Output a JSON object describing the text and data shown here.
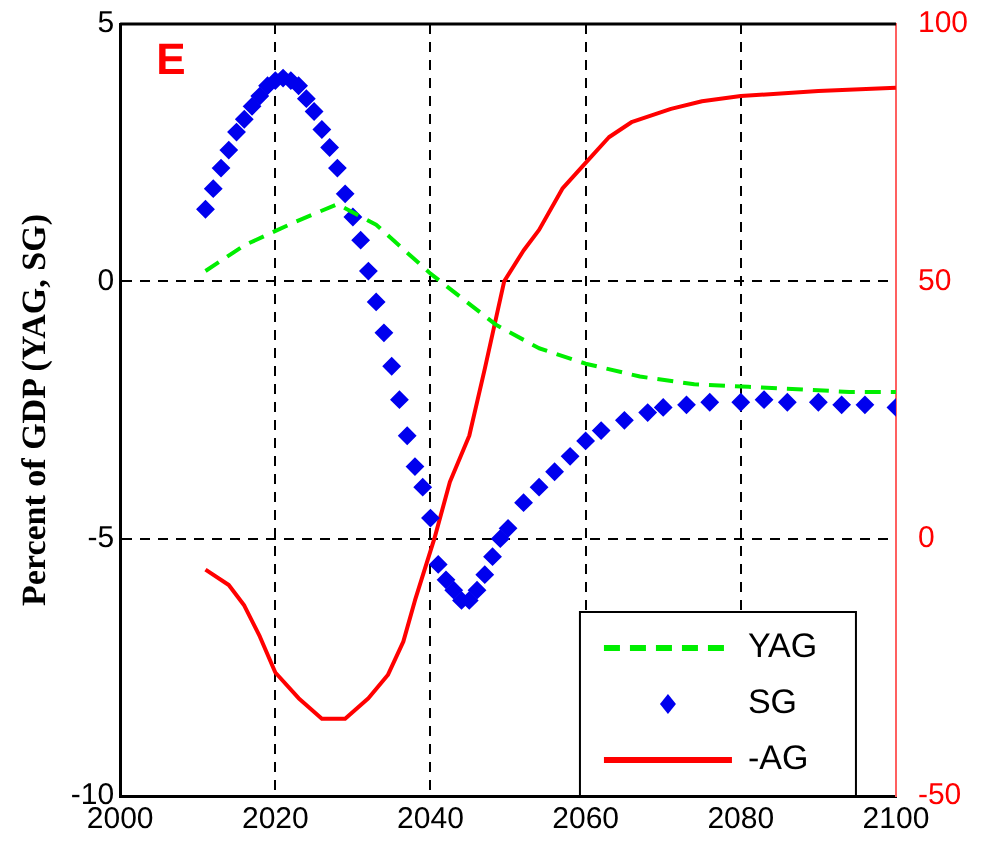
{
  "chart_data": {
    "type": "line",
    "ylabel": "Percent of GDP (YAG, SG)",
    "annotations": [
      "E"
    ],
    "xlim": [
      2000,
      2100
    ],
    "xticks": [
      2000,
      2020,
      2040,
      2060,
      2080,
      2100
    ],
    "ylim": [
      -10,
      5
    ],
    "yticks": [
      -10,
      -5,
      0,
      5
    ],
    "y2lim": [
      -50,
      100
    ],
    "y2ticks": [
      -50,
      0,
      50,
      100
    ],
    "grid": true,
    "legend": "bottom right",
    "series": [
      {
        "name": "YAG",
        "color": "#00ee00",
        "line_style": "dashed",
        "x": [
          2011,
          2016,
          2022.5,
          2028,
          2033,
          2040,
          2048.5,
          2054,
          2060,
          2067,
          2074,
          2081,
          2088,
          2094,
          2100
        ],
        "values": [
          0.2,
          0.7,
          1.15,
          1.5,
          1.1,
          0.15,
          -0.85,
          -1.3,
          -1.6,
          -1.85,
          -2.0,
          -2.05,
          -2.1,
          -2.15,
          -2.15
        ]
      },
      {
        "name": "SG",
        "type": "scatter",
        "marker": "diamond",
        "color": "#0000ee",
        "x": [
          2011,
          2012,
          2013,
          2014,
          2015,
          2016,
          2017,
          2018,
          2019,
          2020,
          2021,
          2022,
          2023,
          2024,
          2025,
          2026,
          2027,
          2028,
          2029,
          2030,
          2031,
          2032,
          2033,
          2034,
          2035,
          2036,
          2037,
          2038,
          2039,
          2040,
          2041,
          2042,
          2043,
          2044,
          2045,
          2046,
          2047,
          2048,
          2049,
          2050,
          2052,
          2054,
          2056,
          2058,
          2060,
          2062,
          2065,
          2068,
          2070,
          2073,
          2076,
          2080,
          2083,
          2086,
          2090,
          2093,
          2096,
          2100
        ],
        "values": [
          1.4,
          1.8,
          2.2,
          2.55,
          2.9,
          3.15,
          3.4,
          3.6,
          3.8,
          3.9,
          3.95,
          3.9,
          3.8,
          3.55,
          3.3,
          2.95,
          2.6,
          2.2,
          1.7,
          1.25,
          0.8,
          0.2,
          -0.4,
          -1.0,
          -1.65,
          -2.3,
          -3.0,
          -3.6,
          -4.0,
          -4.6,
          -5.5,
          -5.8,
          -6.0,
          -6.2,
          -6.2,
          -6.0,
          -5.7,
          -5.35,
          -5.0,
          -4.8,
          -4.3,
          -4.0,
          -3.7,
          -3.4,
          -3.1,
          -2.9,
          -2.7,
          -2.55,
          -2.45,
          -2.4,
          -2.35,
          -2.35,
          -2.3,
          -2.35,
          -2.35,
          -2.4,
          -2.4,
          -2.45
        ]
      },
      {
        "name": "-AG",
        "color": "#ff0000",
        "axis": "y2",
        "x": [
          2011,
          2014,
          2016,
          2018,
          2020,
          2023,
          2026,
          2029,
          2032,
          2034.5,
          2036.5,
          2038,
          2040.5,
          2042.5,
          2045,
          2047,
          2049.5,
          2052,
          2054,
          2057,
          2060,
          2063,
          2066,
          2071,
          2075,
          2080,
          2090,
          2100
        ],
        "values": [
          -6,
          -9,
          -13,
          -19,
          -26,
          -31,
          -35,
          -35,
          -31,
          -26.5,
          -20,
          -12,
          0,
          11,
          20,
          33,
          50,
          56,
          60,
          68,
          73,
          78,
          81,
          83.5,
          85,
          86,
          87,
          87.6
        ]
      }
    ]
  }
}
